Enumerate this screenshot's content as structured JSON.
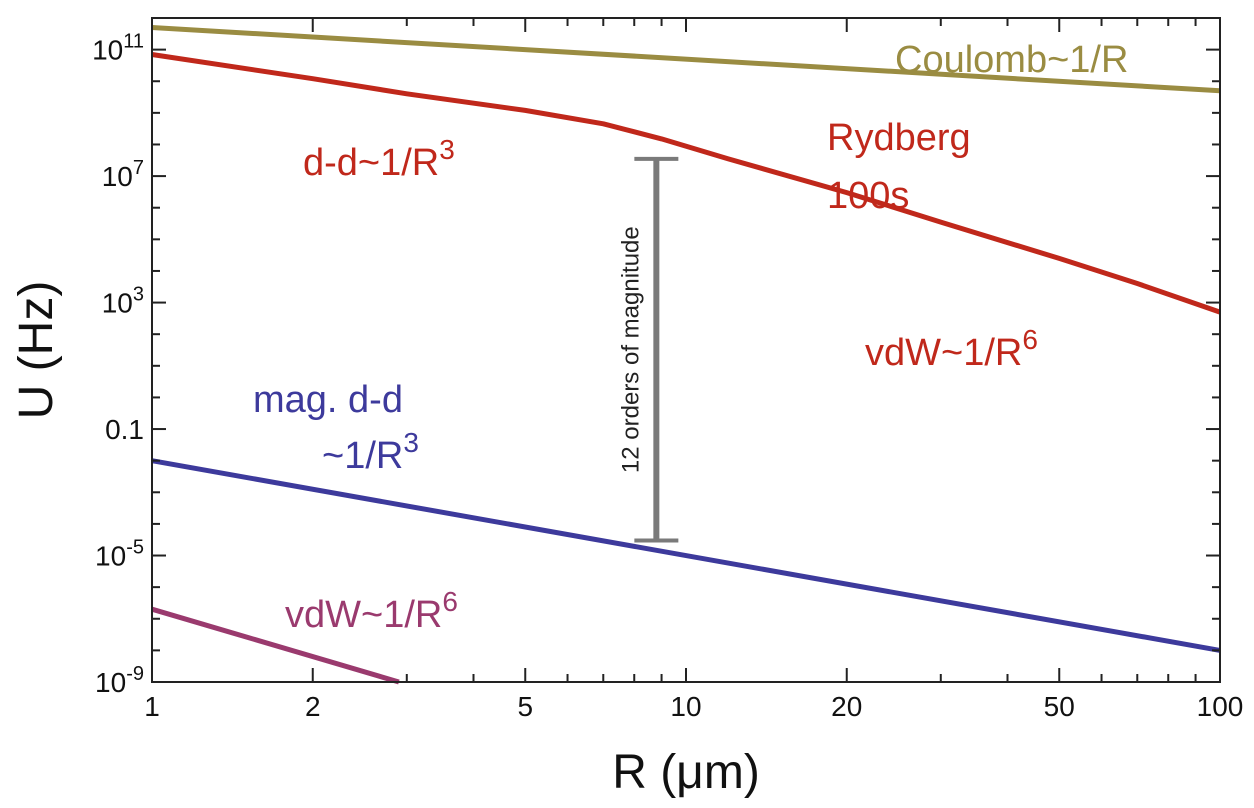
{
  "chart_data": {
    "type": "line",
    "xscale": "log",
    "yscale": "log",
    "xlim": [
      1,
      100
    ],
    "ylim": [
      1e-09,
      1000000000000.0
    ],
    "xlabel": "R (μm)",
    "ylabel": "U (Hz)",
    "title": "",
    "grid": false,
    "legend": "none",
    "xticks": [
      {
        "value": 1,
        "label": "1"
      },
      {
        "value": 2,
        "label": "2"
      },
      {
        "value": 5,
        "label": "5"
      },
      {
        "value": 10,
        "label": "10"
      },
      {
        "value": 20,
        "label": "20"
      },
      {
        "value": 50,
        "label": "50"
      },
      {
        "value": 100,
        "label": "100"
      }
    ],
    "yticks": [
      {
        "value": 1e-09,
        "base": "10",
        "exp": "-9"
      },
      {
        "value": 1e-05,
        "base": "10",
        "exp": "-5"
      },
      {
        "value": 0.1,
        "base": "0.1",
        "exp": ""
      },
      {
        "value": 1000.0,
        "base": "10",
        "exp": "3"
      },
      {
        "value": 10000000.0,
        "base": "10",
        "exp": "7"
      },
      {
        "value": 100000000000.0,
        "base": "10",
        "exp": "11"
      }
    ],
    "series": [
      {
        "key": "coulomb",
        "color": "#9a8c42",
        "x": [
          1,
          100
        ],
        "y": [
          500000000000.0,
          5000000000.0
        ]
      },
      {
        "key": "rydberg",
        "color": "#c0281b",
        "x": [
          1,
          2,
          3,
          5,
          7,
          9,
          12,
          20,
          30,
          50,
          70,
          100
        ],
        "y": [
          70000000000.0,
          12000000000.0,
          4000000000.0,
          1200000000.0,
          450000000.0,
          150000000.0,
          35000000.0,
          3000000.0,
          350000.0,
          25000.0,
          4000.0,
          500.0
        ]
      },
      {
        "key": "magnetic",
        "color": "#3d3a9c",
        "x": [
          1,
          100
        ],
        "y": [
          0.01,
          1e-08
        ]
      },
      {
        "key": "ground-vdw",
        "color": "#9a3a6e",
        "x": [
          1,
          2.9
        ],
        "y": [
          2e-07,
          1e-09
        ]
      }
    ],
    "annotations": [
      {
        "key": "coulomb",
        "color": "#9a8c42",
        "text": "Coulomb~1/R",
        "sup": ""
      },
      {
        "key": "dd",
        "color": "#c0281b",
        "text": "d-d~1/R",
        "sup": "3"
      },
      {
        "key": "rydberg1",
        "color": "#c0281b",
        "text": "Rydberg",
        "sup": ""
      },
      {
        "key": "rydberg2",
        "color": "#c0281b",
        "text": "100s",
        "sup": ""
      },
      {
        "key": "vdw-ryd",
        "color": "#c0281b",
        "text": "vdW~1/R",
        "sup": "6"
      },
      {
        "key": "magdd1",
        "color": "#3d3a9c",
        "text": "mag. d-d",
        "sup": ""
      },
      {
        "key": "magdd2",
        "color": "#3d3a9c",
        "text": "~1/R",
        "sup": "3"
      },
      {
        "key": "vdw-ground",
        "color": "#9a3a6e",
        "text": "vdW~1/R",
        "sup": "6"
      }
    ],
    "bracket": {
      "x": 8.8,
      "y_low": 3e-05,
      "y_high": 35000000.0,
      "label": "12 orders of magnitude",
      "color": "#7a7a7a"
    }
  }
}
